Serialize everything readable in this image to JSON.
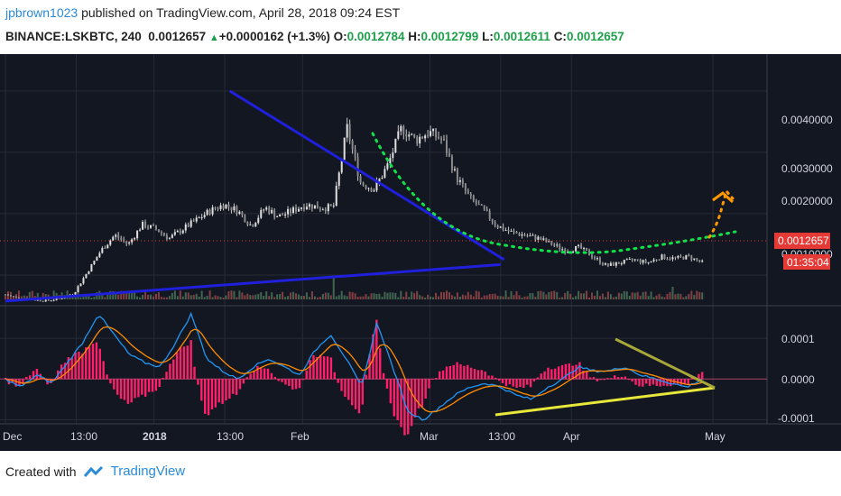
{
  "header": {
    "author": "jpbrown1023",
    "published_text": "published on TradingView.com, April 28, 2018 09:24 EST",
    "symbol": "BINANCE:LSKBTC, 240",
    "last": "0.0012657",
    "change": "+0.0000162 (+1.3%)",
    "o_label": "O:",
    "o_value": "0.0012784",
    "h_label": "H:",
    "h_value": "0.0012799",
    "l_label": "L:",
    "l_value": "0.0012611",
    "c_label": "C:",
    "c_value": "0.0012657"
  },
  "price_axis": {
    "ticks": [
      "0.0040000",
      "0.0030000",
      "0.0020000",
      "0.0010000"
    ],
    "current_price": "0.0012657",
    "countdown": "01:35:04"
  },
  "osc_axis": {
    "ticks": [
      "0.0001",
      "0.0000",
      "-0.0001"
    ]
  },
  "time_axis": {
    "ticks": [
      "Dec",
      "13:00",
      "2018",
      "13:00",
      "Feb",
      "Mar",
      "13:00",
      "Apr",
      "May"
    ]
  },
  "footer": {
    "created_with": "Created with",
    "brand": "TradingView"
  },
  "colors": {
    "background": "#131722",
    "grid": "#262b36",
    "candles": "#c8c8c8",
    "trendline": "#1f1fdc",
    "green_dots": "#12e04a",
    "orange_dots": "#ff9800",
    "yellow_lines": "#e8e83a",
    "olive_line": "#a8a83a",
    "macd_line": "#2196f3",
    "signal_line": "#ff8c00",
    "histogram": "#ff1f6b",
    "price_label": "#e53935"
  },
  "chart_data": [
    {
      "type": "line",
      "pane": "price (candlestick, 4h)",
      "ylim": [
        0.0005,
        0.0046
      ],
      "close": [
        0.00068,
        0.00062,
        0.0006,
        0.00058,
        0.00062,
        0.0007,
        0.00105,
        0.0014,
        0.00165,
        0.0015,
        0.00182,
        0.00175,
        0.0016,
        0.00175,
        0.0019,
        0.00205,
        0.00215,
        0.00205,
        0.0018,
        0.0021,
        0.00195,
        0.00205,
        0.00215,
        0.0021,
        0.0021,
        0.0034,
        0.0025,
        0.0024,
        0.0028,
        0.0034,
        0.0032,
        0.00333,
        0.0032,
        0.0026,
        0.00225,
        0.00205,
        0.0018,
        0.0017,
        0.00165,
        0.0016,
        0.0015,
        0.0014,
        0.00145,
        0.0013,
        0.00115,
        0.0012,
        0.00125,
        0.0012,
        0.0013,
        0.00127,
        0.0013,
        0.0012
      ],
      "trendlines": [
        {
          "from": [
            0.0,
            0.000575
          ],
          "to": [
            0.7,
            0.00117
          ]
        },
        {
          "from": [
            0.317,
            0.004
          ],
          "to": [
            0.705,
            0.00125
          ]
        }
      ]
    },
    {
      "type": "line",
      "pane": "MACD oscillator",
      "ylim": [
        -0.00011,
        0.00018
      ],
      "series": [
        {
          "values": [
            0.0,
            -2e-05,
            1e-05,
            -1e-05,
            4e-05,
            9e-05,
            0.00016,
            0.00011,
            6e-05,
            4e-05,
            3e-05,
            9e-05,
            0.00016,
            5e-05,
            2e-05,
            0.0,
            3e-05,
            5e-05,
            3e-05,
            1e-05,
            7e-05,
            0.00011,
            5e-05,
            -2e-05,
            0.00014,
            3e-05,
            -8e-05,
            -0.0001,
            -7e-05,
            -4e-05,
            -2e-05,
            -1e-05,
            -2e-05,
            -4e-05,
            -5e-05,
            -2e-05,
            0.0,
            3e-05,
            2e-05,
            2e-05,
            3e-05,
            1e-05,
            0.0,
            -1e-05,
            -2e-05,
            0.0
          ]
        }
      ]
    }
  ]
}
